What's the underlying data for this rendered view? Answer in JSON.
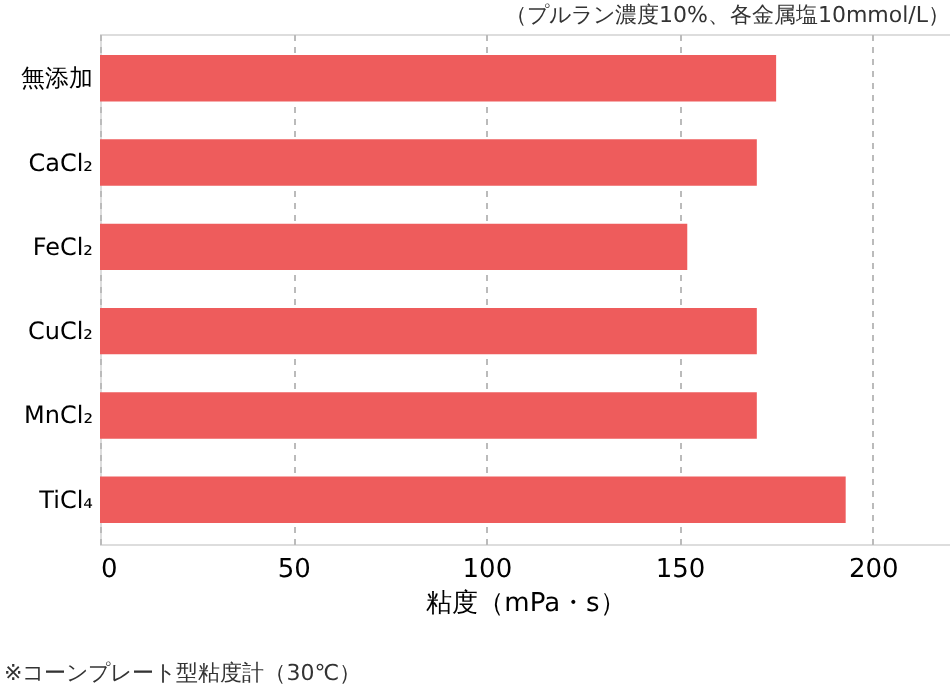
{
  "chart_data": {
    "type": "bar",
    "orientation": "horizontal",
    "subtitle": "（プルラン濃度10%、各金属塩10mmol/L）",
    "xlabel": "粘度（mPa・s）",
    "categories": [
      "無添加",
      "CaCl₂",
      "FeCl₂",
      "CuCl₂",
      "MnCl₂",
      "TiCl₄"
    ],
    "values": [
      175,
      170,
      152,
      170,
      170,
      193
    ],
    "color": "#ee5c5c",
    "xlim": [
      0,
      220
    ],
    "xticks": [
      0,
      50,
      100,
      150,
      200
    ],
    "grid": "x",
    "annotations": [
      "※コーンプレート型粘度計（30℃）"
    ]
  }
}
